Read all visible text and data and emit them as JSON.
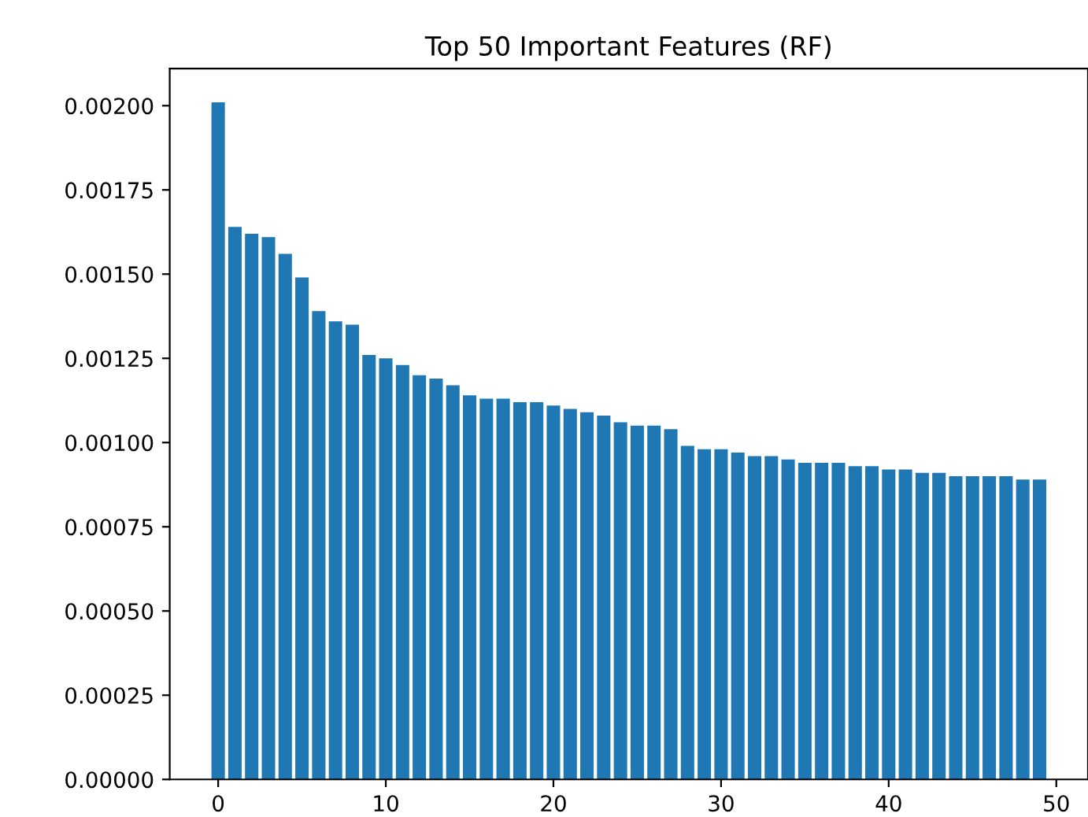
{
  "chart_data": {
    "type": "bar",
    "title": "Top 50 Important Features (RF)",
    "x": [
      0,
      1,
      2,
      3,
      4,
      5,
      6,
      7,
      8,
      9,
      10,
      11,
      12,
      13,
      14,
      15,
      16,
      17,
      18,
      19,
      20,
      21,
      22,
      23,
      24,
      25,
      26,
      27,
      28,
      29,
      30,
      31,
      32,
      33,
      34,
      35,
      36,
      37,
      38,
      39,
      40,
      41,
      42,
      43,
      44,
      45,
      46,
      47,
      48,
      49
    ],
    "values": [
      0.00201,
      0.00164,
      0.00162,
      0.00161,
      0.00156,
      0.00149,
      0.00139,
      0.00136,
      0.00135,
      0.00126,
      0.00125,
      0.00123,
      0.0012,
      0.00119,
      0.00117,
      0.00114,
      0.00113,
      0.00113,
      0.00112,
      0.00112,
      0.00111,
      0.0011,
      0.00109,
      0.00108,
      0.00106,
      0.00105,
      0.00105,
      0.00104,
      0.00099,
      0.00098,
      0.00098,
      0.00097,
      0.00096,
      0.00096,
      0.00095,
      0.00094,
      0.00094,
      0.00094,
      0.00093,
      0.00093,
      0.00092,
      0.00092,
      0.00091,
      0.00091,
      0.0009,
      0.0009,
      0.0009,
      0.0009,
      0.00089,
      0.00089
    ],
    "color": "#1f77b4",
    "xlim": [
      -2.89,
      51.89
    ],
    "xticks": [
      0,
      10,
      20,
      30,
      40,
      50
    ],
    "ylim": [
      0,
      0.00211
    ],
    "yticks": [
      {
        "value": 0,
        "label": "0.00000"
      },
      {
        "value": 0.00025,
        "label": "0.00025"
      },
      {
        "value": 0.0005,
        "label": "0.00050"
      },
      {
        "value": 0.00075,
        "label": "0.00075"
      },
      {
        "value": 0.001,
        "label": "0.00100"
      },
      {
        "value": 0.00125,
        "label": "0.00125"
      },
      {
        "value": 0.0015,
        "label": "0.00150"
      },
      {
        "value": 0.00175,
        "label": "0.00175"
      },
      {
        "value": 0.002,
        "label": "0.00200"
      }
    ],
    "grid": false
  }
}
